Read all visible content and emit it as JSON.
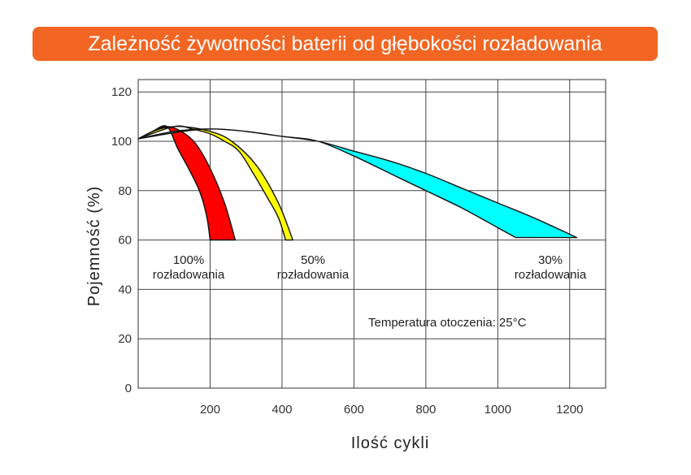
{
  "chart_data": {
    "type": "area",
    "title": "Zależność żywotności baterii od głębokości rozładowania",
    "xlabel": "Ilość cykli",
    "ylabel": "Pojemność (%)",
    "xlim": [
      0,
      1300
    ],
    "ylim": [
      0,
      125
    ],
    "x_ticks": [
      200,
      400,
      600,
      800,
      1000,
      1200
    ],
    "y_ticks": [
      0,
      20,
      40,
      60,
      80,
      100,
      120
    ],
    "grid": true,
    "series": [
      {
        "label_lines": [
          "100%",
          "rozładowania"
        ],
        "color": "#ff0000",
        "upper": [
          [
            0,
            101
          ],
          [
            40,
            104
          ],
          [
            80,
            106
          ],
          [
            120,
            104
          ],
          [
            160,
            99
          ],
          [
            200,
            89
          ],
          [
            240,
            75
          ],
          [
            270,
            60
          ]
        ],
        "lower": [
          [
            0,
            101
          ],
          [
            40,
            104
          ],
          [
            80,
            106
          ],
          [
            110,
            97
          ],
          [
            140,
            89
          ],
          [
            170,
            80
          ],
          [
            190,
            70
          ],
          [
            200,
            60
          ]
        ]
      },
      {
        "label_lines": [
          "50%",
          "rozładowania"
        ],
        "color": "#ffff00",
        "upper": [
          [
            0,
            101
          ],
          [
            60,
            105
          ],
          [
            120,
            106
          ],
          [
            200,
            104
          ],
          [
            260,
            100
          ],
          [
            330,
            90
          ],
          [
            390,
            75
          ],
          [
            430,
            60
          ]
        ],
        "lower": [
          [
            0,
            101
          ],
          [
            100,
            106
          ],
          [
            150,
            105
          ],
          [
            200,
            103
          ],
          [
            240,
            100
          ],
          [
            280,
            96
          ],
          [
            320,
            87
          ],
          [
            360,
            77
          ],
          [
            390,
            69
          ],
          [
            410,
            60
          ]
        ]
      },
      {
        "label_lines": [
          "30%",
          "rozładowania"
        ],
        "color": "#00ffff",
        "upper": [
          [
            0,
            101
          ],
          [
            100,
            104
          ],
          [
            200,
            105
          ],
          [
            300,
            104
          ],
          [
            400,
            102
          ],
          [
            500,
            100
          ],
          [
            600,
            96
          ],
          [
            700,
            92
          ],
          [
            800,
            87
          ],
          [
            900,
            81
          ],
          [
            1000,
            75
          ],
          [
            1100,
            69
          ],
          [
            1220,
            61
          ]
        ],
        "lower": [
          [
            0,
            101
          ],
          [
            200,
            105
          ],
          [
            400,
            102
          ],
          [
            500,
            100
          ],
          [
            600,
            94
          ],
          [
            700,
            87
          ],
          [
            800,
            80
          ],
          [
            900,
            73
          ],
          [
            1000,
            65
          ],
          [
            1050,
            61
          ]
        ]
      }
    ],
    "annotation": "Temperatura otoczenia: 25°C"
  }
}
